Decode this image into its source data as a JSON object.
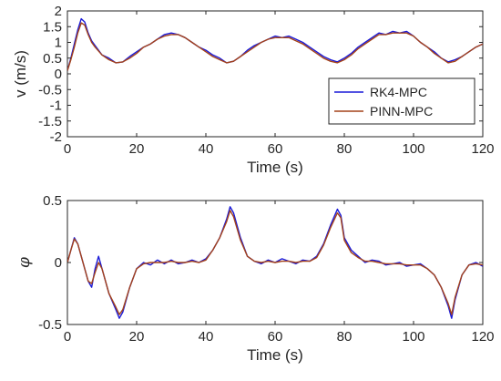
{
  "chart_data": [
    {
      "type": "line",
      "xlabel": "Time (s)",
      "ylabel": "v (m/s)",
      "xlim": [
        0,
        120
      ],
      "ylim": [
        -2,
        2
      ],
      "xticks": [
        0,
        20,
        40,
        60,
        80,
        100,
        120
      ],
      "yticks": [
        -2,
        -1.5,
        -1,
        -0.5,
        0,
        0.5,
        1,
        1.5,
        2
      ],
      "ytick_labels": [
        "-2",
        "-1.5",
        "-1",
        "-0.5",
        "0",
        "0.5",
        "1",
        "1.5",
        "2"
      ],
      "grid": false,
      "legend": "center-right",
      "x": [
        0,
        1,
        2,
        3,
        4,
        5,
        6,
        7,
        8,
        10,
        12,
        14,
        16,
        18,
        20,
        22,
        24,
        26,
        28,
        30,
        32,
        34,
        36,
        38,
        40,
        42,
        44,
        46,
        48,
        50,
        52,
        54,
        56,
        58,
        60,
        62,
        64,
        66,
        68,
        70,
        72,
        74,
        76,
        78,
        80,
        82,
        84,
        86,
        88,
        90,
        92,
        94,
        96,
        98,
        100,
        102,
        104,
        106,
        108,
        110,
        112,
        114,
        116,
        118,
        120
      ],
      "series": [
        {
          "name": "RK4-MPC",
          "color": "#1a1ad8",
          "values": [
            0.1,
            0.5,
            0.95,
            1.4,
            1.75,
            1.65,
            1.3,
            1.05,
            0.9,
            0.6,
            0.5,
            0.35,
            0.38,
            0.55,
            0.7,
            0.85,
            0.95,
            1.1,
            1.25,
            1.3,
            1.25,
            1.15,
            1.0,
            0.85,
            0.75,
            0.6,
            0.5,
            0.35,
            0.4,
            0.55,
            0.75,
            0.9,
            1.0,
            1.1,
            1.2,
            1.15,
            1.2,
            1.1,
            1.0,
            0.85,
            0.7,
            0.55,
            0.45,
            0.38,
            0.5,
            0.65,
            0.85,
            1.0,
            1.15,
            1.3,
            1.25,
            1.35,
            1.3,
            1.35,
            1.2,
            1.0,
            0.85,
            0.7,
            0.5,
            0.38,
            0.45,
            0.55,
            0.7,
            0.85,
            0.95
          ]
        },
        {
          "name": "PINN-MPC",
          "color": "#a4421a",
          "values": [
            0.1,
            0.45,
            0.85,
            1.3,
            1.62,
            1.55,
            1.25,
            1.0,
            0.85,
            0.6,
            0.45,
            0.35,
            0.38,
            0.5,
            0.65,
            0.85,
            0.95,
            1.1,
            1.2,
            1.25,
            1.25,
            1.15,
            1.0,
            0.85,
            0.7,
            0.55,
            0.45,
            0.35,
            0.4,
            0.55,
            0.7,
            0.85,
            1.0,
            1.1,
            1.15,
            1.15,
            1.15,
            1.05,
            0.95,
            0.8,
            0.65,
            0.5,
            0.4,
            0.35,
            0.45,
            0.6,
            0.8,
            0.95,
            1.1,
            1.25,
            1.25,
            1.3,
            1.3,
            1.3,
            1.2,
            1.0,
            0.85,
            0.65,
            0.5,
            0.35,
            0.4,
            0.55,
            0.7,
            0.85,
            0.95
          ]
        }
      ]
    },
    {
      "type": "line",
      "xlabel": "Time (s)",
      "ylabel": "φ",
      "xlim": [
        0,
        120
      ],
      "ylim": [
        -0.5,
        0.5
      ],
      "xticks": [
        0,
        20,
        40,
        60,
        80,
        100,
        120
      ],
      "yticks": [
        -0.5,
        0,
        0.5
      ],
      "ytick_labels": [
        "-0.5",
        "0",
        "0.5"
      ],
      "grid": false,
      "x": [
        0,
        1,
        2,
        3,
        4,
        5,
        6,
        7,
        8,
        9,
        10,
        12,
        14,
        15,
        16,
        18,
        20,
        22,
        24,
        26,
        28,
        30,
        32,
        34,
        36,
        38,
        40,
        42,
        44,
        46,
        47,
        48,
        50,
        52,
        54,
        56,
        58,
        60,
        62,
        64,
        66,
        68,
        70,
        72,
        74,
        76,
        78,
        79,
        80,
        82,
        84,
        86,
        88,
        90,
        92,
        94,
        96,
        98,
        100,
        102,
        104,
        106,
        108,
        110,
        111,
        112,
        114,
        116,
        118,
        120
      ],
      "series": [
        {
          "name": "RK4-MPC",
          "color": "#1a1ad8",
          "values": [
            0.0,
            0.1,
            0.2,
            0.15,
            0.05,
            -0.05,
            -0.15,
            -0.2,
            -0.05,
            0.05,
            -0.05,
            -0.25,
            -0.38,
            -0.45,
            -0.4,
            -0.2,
            -0.05,
            0.0,
            -0.02,
            0.02,
            -0.01,
            0.02,
            -0.01,
            0.0,
            0.02,
            0.0,
            0.03,
            0.1,
            0.2,
            0.35,
            0.45,
            0.4,
            0.2,
            0.05,
            0.01,
            -0.01,
            0.02,
            0.0,
            0.03,
            0.01,
            -0.01,
            0.02,
            0.01,
            0.05,
            0.15,
            0.3,
            0.43,
            0.38,
            0.2,
            0.1,
            0.05,
            0.0,
            0.02,
            0.01,
            -0.02,
            -0.01,
            0.0,
            -0.03,
            -0.02,
            -0.01,
            -0.05,
            -0.1,
            -0.2,
            -0.35,
            -0.45,
            -0.3,
            -0.1,
            -0.02,
            0.0,
            -0.03
          ]
        },
        {
          "name": "PINN-MPC",
          "color": "#a4421a",
          "values": [
            0.0,
            0.1,
            0.19,
            0.15,
            0.05,
            -0.05,
            -0.15,
            -0.17,
            -0.08,
            0.0,
            -0.05,
            -0.25,
            -0.36,
            -0.42,
            -0.38,
            -0.2,
            -0.05,
            -0.01,
            0.0,
            0.0,
            0.0,
            0.01,
            0.0,
            0.0,
            0.01,
            0.0,
            0.02,
            0.1,
            0.2,
            0.33,
            0.42,
            0.37,
            0.18,
            0.05,
            0.01,
            0.0,
            0.01,
            0.0,
            0.01,
            0.01,
            0.0,
            0.01,
            0.01,
            0.04,
            0.14,
            0.28,
            0.4,
            0.36,
            0.18,
            0.08,
            0.04,
            0.01,
            0.01,
            0.0,
            -0.01,
            -0.01,
            -0.01,
            -0.02,
            -0.02,
            -0.02,
            -0.05,
            -0.1,
            -0.2,
            -0.33,
            -0.42,
            -0.28,
            -0.1,
            -0.02,
            -0.01,
            -0.02
          ]
        }
      ]
    }
  ]
}
